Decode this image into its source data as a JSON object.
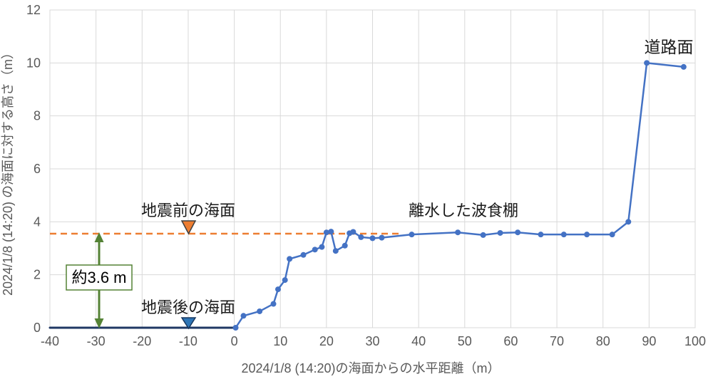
{
  "chart_data": {
    "type": "line",
    "title": "",
    "xlabel": "2024/1/8 (14:20)の海面からの水平距離（m）",
    "ylabel": "2024/1/8 (14:20) の海面に対する高さ（m）",
    "xlim": [
      -40,
      100
    ],
    "ylim": [
      0,
      12
    ],
    "x_ticks": [
      -40,
      -30,
      -20,
      -10,
      0,
      10,
      20,
      30,
      40,
      50,
      60,
      70,
      80,
      90,
      100
    ],
    "y_ticks": [
      0,
      2,
      4,
      6,
      8,
      10,
      12
    ],
    "grid": true,
    "legend": "none",
    "series": [
      {
        "id": "post-quake-sea-surface",
        "color": "#1F3864",
        "markers": false,
        "line_width": 3,
        "points": [
          [
            -40,
            0
          ],
          [
            0.3,
            0
          ]
        ]
      },
      {
        "id": "terrain-profile",
        "color": "#4472C4",
        "markers": true,
        "line_width": 2.5,
        "points": [
          [
            0.3,
            0
          ],
          [
            2,
            0.45
          ],
          [
            5.5,
            0.62
          ],
          [
            8.5,
            0.9
          ],
          [
            9.5,
            1.45
          ],
          [
            11,
            1.8
          ],
          [
            12,
            2.6
          ],
          [
            15,
            2.75
          ],
          [
            17.5,
            2.95
          ],
          [
            19,
            3.05
          ],
          [
            20,
            3.6
          ],
          [
            21,
            3.63
          ],
          [
            22,
            2.9
          ],
          [
            24,
            3.1
          ],
          [
            25,
            3.57
          ],
          [
            25.8,
            3.62
          ],
          [
            27.5,
            3.42
          ],
          [
            30,
            3.38
          ],
          [
            32,
            3.4
          ],
          [
            38.5,
            3.52
          ],
          [
            48.5,
            3.6
          ],
          [
            54,
            3.5
          ],
          [
            57.7,
            3.58
          ],
          [
            61.5,
            3.6
          ],
          [
            66.5,
            3.52
          ],
          [
            71.5,
            3.52
          ],
          [
            76.5,
            3.52
          ],
          [
            82,
            3.52
          ],
          [
            85.5,
            4.0
          ],
          [
            89.5,
            10.0
          ],
          [
            97.5,
            9.85
          ]
        ]
      }
    ],
    "reference_line": {
      "id": "pre-quake-sea-level",
      "y": 3.55,
      "x_start": -40,
      "x_end": 36,
      "style": "dashed",
      "color": "#ED7D31"
    },
    "annotations": {
      "pre_quake_sea": "地震前の海面",
      "post_quake_sea": "地震後の海面",
      "wave_cut_bench": "離水した波食棚",
      "road_surface": "道路面",
      "uplift_amount": "約3.6 m"
    }
  },
  "colors": {
    "background": "#FFFFFF",
    "grid": "#D9D9D9",
    "tick_text": "#595959",
    "axis_title_text": "#595959",
    "annotation_text": "#1A1A1A",
    "uplift_arrow": "#548235",
    "uplift_box_border": "#548235",
    "uplift_box_fill": "#FFFFFF",
    "pre_quake_triangle": "#ED7D31",
    "pre_quake_triangle_border": "#404040",
    "post_quake_triangle": "#2E75B6",
    "post_quake_triangle_border": "#17375E"
  }
}
